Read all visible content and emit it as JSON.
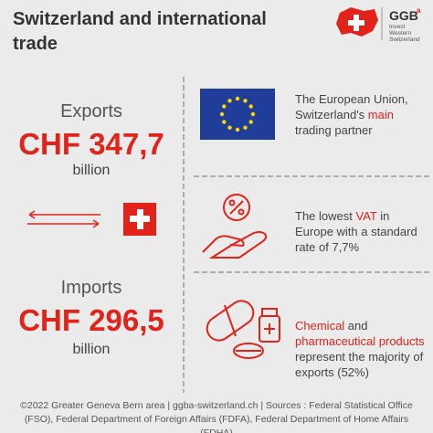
{
  "header": {
    "title": "Switzerland and international trade",
    "logo_main": "GGB",
    "logo_sup": "a",
    "logo_lines": [
      "Invest",
      "Western",
      "Switzerland"
    ]
  },
  "exports": {
    "label": "Exports",
    "amount": "CHF 347,7",
    "unit": "billion"
  },
  "imports": {
    "label": "Imports",
    "amount": "CHF 296,5",
    "unit": "billion"
  },
  "items": [
    {
      "parts": [
        {
          "text": "The European Union, Switzerland's ",
          "highlight": false
        },
        {
          "text": "main",
          "highlight": true
        },
        {
          "text": " trading partner",
          "highlight": false
        }
      ]
    },
    {
      "parts": [
        {
          "text": "The lowest ",
          "highlight": false
        },
        {
          "text": "VAT",
          "highlight": true
        },
        {
          "text": " in Europe with a standard rate of 7,7%",
          "highlight": false
        }
      ]
    },
    {
      "parts": [
        {
          "text": "Chemical",
          "highlight": true
        },
        {
          "text": " and ",
          "highlight": false
        },
        {
          "text": "pharmaceutical products",
          "highlight": true
        },
        {
          "text": " represent the majority of exports (52%)",
          "highlight": false
        }
      ]
    }
  ],
  "footer": "©2022 Greater Geneva Bern area | ggba-switzerland.ch | Sources : Federal Statistical Office (FSO), Federal Department of Foreign Affairs (FDFA), Federal Department of Home Affairs (FDHA)"
}
